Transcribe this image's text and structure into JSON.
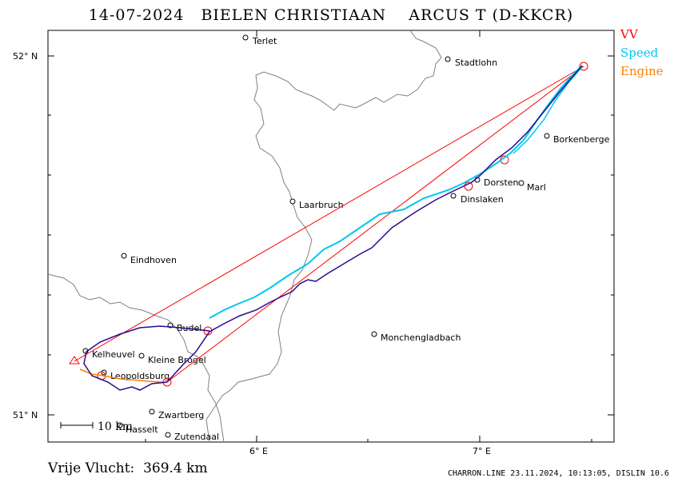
{
  "title": "14-07-2024   BIELEN CHRISTIAAN    ARCUS T (D-KKCR)",
  "legend": {
    "vv": "VV",
    "speed": "Speed",
    "engine": "Engine"
  },
  "colors": {
    "vv": "#ff0000",
    "speed": "#00c8f0",
    "engine": "#ff8000",
    "track": "#2a0a8c",
    "border": "#808080"
  },
  "axes": {
    "lat_52": "52° N",
    "lat_51": "51° N",
    "lon_6": "6° E",
    "lon_7": "7° E"
  },
  "scale_label": "10 km",
  "towns": [
    "Terlet",
    "Stadtlohn",
    "Borkenberge",
    "Dorsten",
    "Marl",
    "Dinslaken",
    "Laarbruch",
    "Eindhoven",
    "Budel",
    "Monchengladbach",
    "Kelheuvel",
    "Kleine Brogel",
    "Leopoldsburg",
    "Zwartberg",
    "Hasselt",
    "Zutendaal"
  ],
  "footer": {
    "distance": "Vrije Vlucht:  369.4 km",
    "credit": "CHARRON.LINE 23.11.2024, 10:13:05, DISLIN 10.6"
  }
}
